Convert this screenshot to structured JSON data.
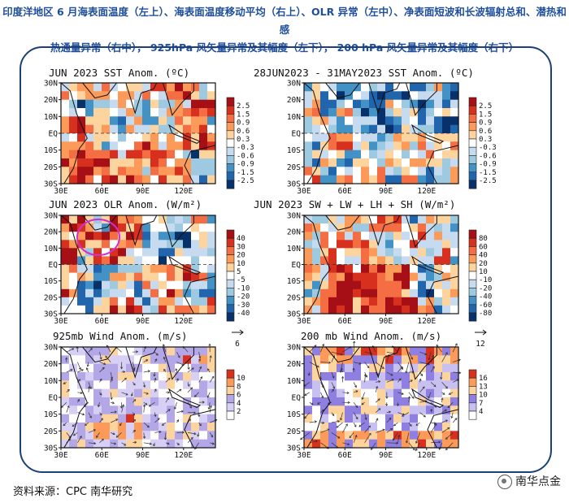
{
  "header": {
    "caption_line1": "印度洋地区 6 月海表面温度（左上）、海表面温度移动平均（右上）、OLR 异常（左中）、净表面短波和长波辐射总和、潜热和感",
    "caption_line2": "热通量异常（右中）， 925hPa 风矢量异常及其幅度（左下）， 200 hPa 风矢量异常及其幅度（右下）"
  },
  "footer": {
    "source": "资料来源：CPC  南华研究",
    "watermark": "南华点金",
    "watermark_icon": "wechat-icon"
  },
  "chart_data": [
    {
      "type": "heatmap",
      "title": "JUN 2023 SST Anom. (ºC)",
      "x_ticks": [
        "30E",
        "60E",
        "90E",
        "120E"
      ],
      "y_ticks": [
        "30N",
        "20N",
        "10N",
        "EQ",
        "10S",
        "20S",
        "30S"
      ],
      "colorbar_labels": [
        "2.5",
        "1.5",
        "0.9",
        "0.6",
        "0.3",
        "-0.3",
        "-0.6",
        "-0.9",
        "-1.5",
        "-2.5"
      ],
      "colors": [
        "#a50f15",
        "#d7301f",
        "#f46d43",
        "#fc9a59",
        "#fdd49e",
        "#ffffff",
        "#c6dbef",
        "#9ecae1",
        "#4292c6",
        "#2166ac",
        "#08306b"
      ]
    },
    {
      "type": "heatmap",
      "title": "28JUN2023 - 31MAY2023 SST Anom. (ºC)",
      "x_ticks": [
        "30E",
        "60E",
        "90E",
        "120E"
      ],
      "y_ticks": [
        "30N",
        "20N",
        "10N",
        "EQ",
        "10S",
        "20S",
        "30S"
      ],
      "colorbar_labels": [
        "2.5",
        "1.5",
        "0.9",
        "0.6",
        "0.3",
        "-0.3",
        "-0.6",
        "-0.9",
        "-1.5",
        "-2.5"
      ],
      "colors": [
        "#a50f15",
        "#d7301f",
        "#f46d43",
        "#fc9a59",
        "#fdd49e",
        "#ffffff",
        "#c6dbef",
        "#9ecae1",
        "#4292c6",
        "#2166ac",
        "#08306b"
      ]
    },
    {
      "type": "heatmap",
      "title": "JUN 2023 OLR Anom. (W/m²)",
      "x_ticks": [
        "30E",
        "60E",
        "90E",
        "120E"
      ],
      "y_ticks": [
        "30N",
        "20N",
        "10N",
        "EQ",
        "10S",
        "20S",
        "30S"
      ],
      "colorbar_labels": [
        "40",
        "30",
        "20",
        "10",
        "5",
        "-5",
        "-10",
        "-20",
        "-30",
        "-40"
      ],
      "colors": [
        "#a50f15",
        "#d7301f",
        "#f46d43",
        "#fc9a59",
        "#fdd49e",
        "#ffffff",
        "#c6dbef",
        "#9ecae1",
        "#4292c6",
        "#2166ac",
        "#08306b"
      ]
    },
    {
      "type": "heatmap",
      "title": "JUN 2023 SW + LW + LH + SH (W/m²)",
      "x_ticks": [
        "30E",
        "60E",
        "90E",
        "120E"
      ],
      "y_ticks": [
        "30N",
        "20N",
        "10N",
        "EQ",
        "10S",
        "20S",
        "30S"
      ],
      "colorbar_labels": [
        "80",
        "60",
        "40",
        "20",
        "10",
        "-10",
        "-20",
        "-40",
        "-60",
        "-80"
      ],
      "colors": [
        "#a50f15",
        "#d7301f",
        "#f46d43",
        "#fc9a59",
        "#fdd49e",
        "#ffffff",
        "#c6dbef",
        "#9ecae1",
        "#4292c6",
        "#2166ac",
        "#08306b"
      ]
    },
    {
      "type": "heatmap",
      "title": "925mb Wind Anom. (m/s)",
      "reference_vector": "6",
      "x_ticks": [
        "30E",
        "60E",
        "90E",
        "120E"
      ],
      "y_ticks": [
        "30N",
        "20N",
        "10N",
        "EQ",
        "10S",
        "20S",
        "30S"
      ],
      "colorbar_labels": [
        "10",
        "8",
        "6",
        "4",
        "2"
      ],
      "colors": [
        "#d7301f",
        "#fc9a59",
        "#fdd49e",
        "#b4a7e8",
        "#d8d0f4",
        "#ffffff"
      ]
    },
    {
      "type": "heatmap",
      "title": "200 mb Wind Anom. (m/s)",
      "reference_vector": "12",
      "x_ticks": [
        "30E",
        "60E",
        "90E",
        "120E"
      ],
      "y_ticks": [
        "30N",
        "20N",
        "10N",
        "EQ",
        "10S",
        "20S",
        "30S"
      ],
      "colorbar_labels": [
        "16",
        "13",
        "10",
        "7",
        "4"
      ],
      "colors": [
        "#d7301f",
        "#fc9a59",
        "#fdd49e",
        "#8f7fe0",
        "#c9c0f2",
        "#ffffff"
      ]
    }
  ]
}
